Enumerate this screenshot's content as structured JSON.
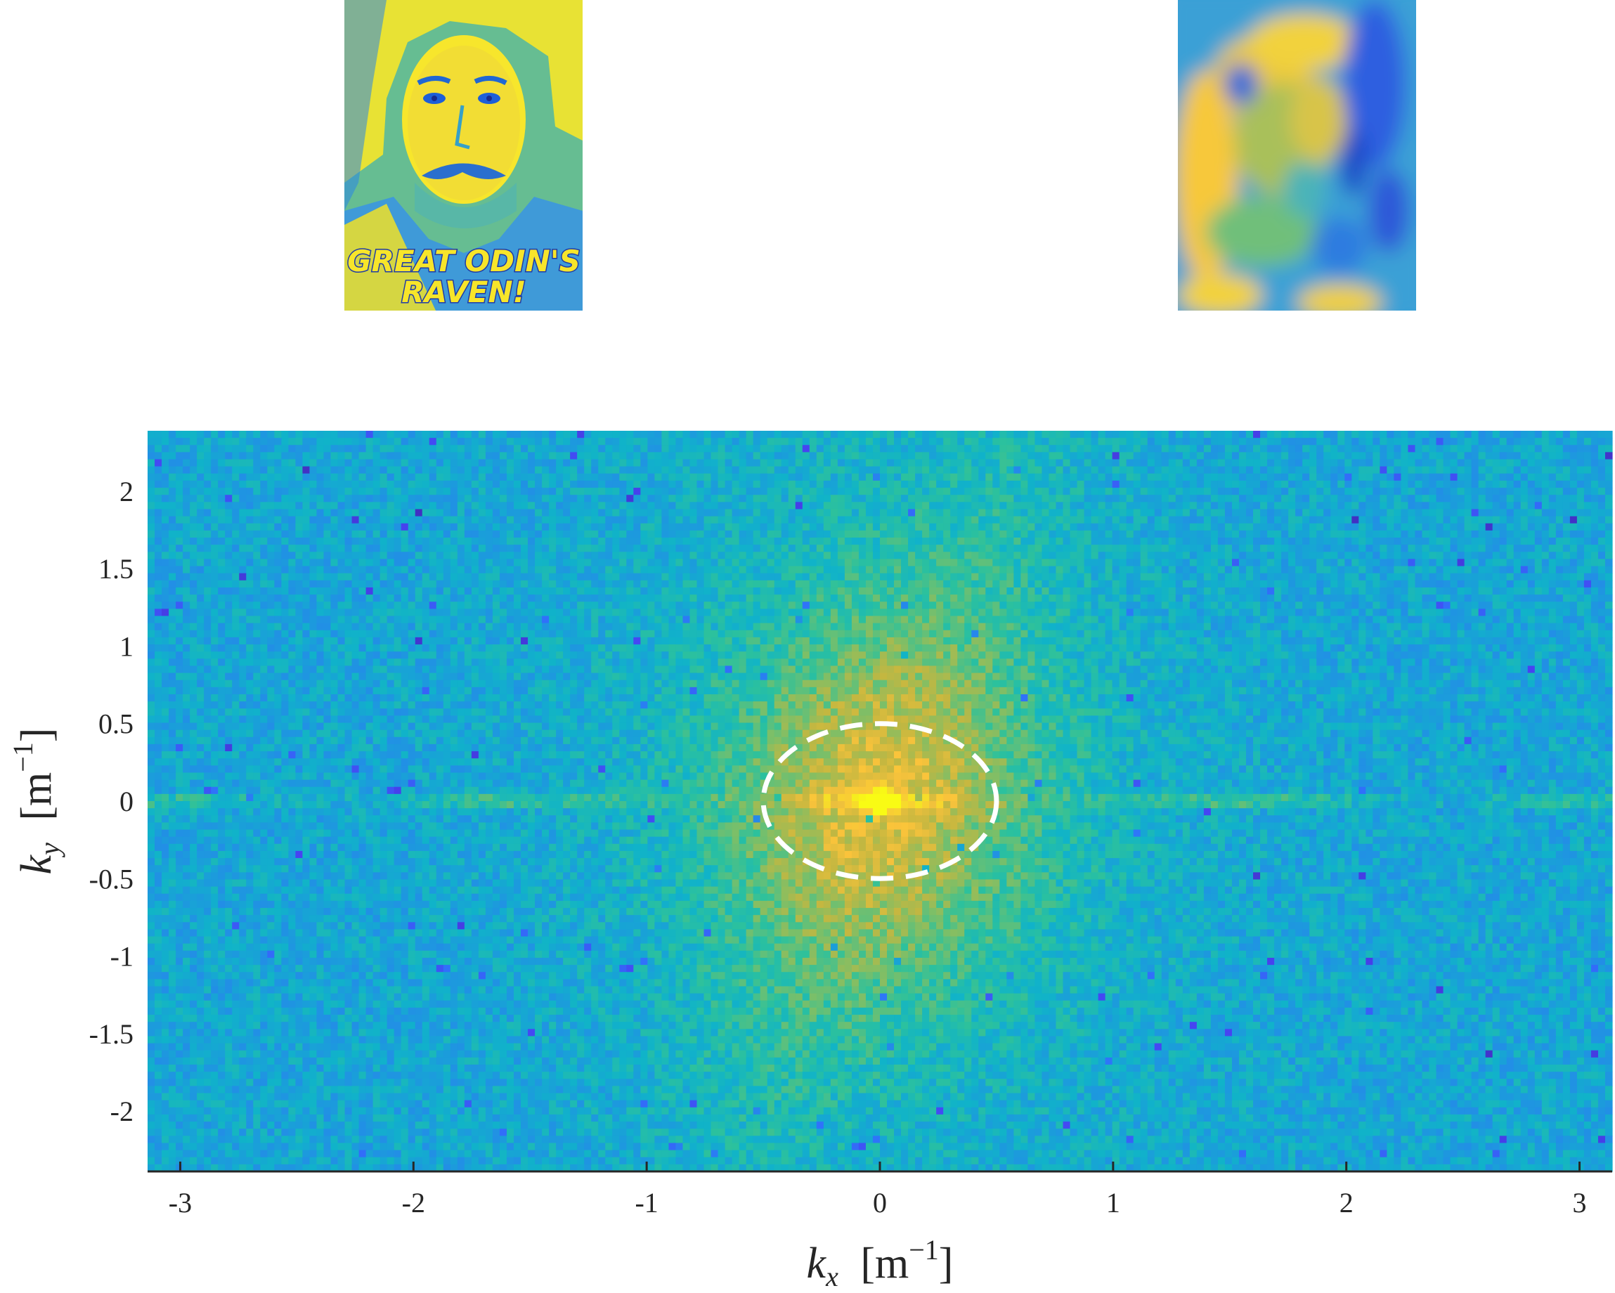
{
  "colors": {
    "colormap": [
      "#3e26a8",
      "#4743f2",
      "#2f73fa",
      "#1f95e1",
      "#10b3c9",
      "#2cc19d",
      "#7abf69",
      "#c4b740",
      "#fac33b",
      "#f5e524",
      "#f9fb14"
    ],
    "ellipse": "#ffffff",
    "axis": "#262626"
  },
  "thumbnails": {
    "original": {
      "caption_line1": "GREAT ODIN'S",
      "caption_line2": "RAVEN!"
    },
    "filtered": {}
  },
  "chart_data": {
    "type": "heatmap",
    "title": "",
    "colormap": "parula",
    "xlim": [
      -3.14,
      3.14
    ],
    "ylim": [
      -2.39,
      2.39
    ],
    "xticks": [
      -3,
      -2,
      -1,
      0,
      1,
      2,
      3
    ],
    "xtick_labels": [
      "-3",
      "-2",
      "-1",
      "0",
      "1",
      "2",
      "3"
    ],
    "yticks": [
      2,
      1.5,
      1,
      0.5,
      0,
      -0.5,
      -1,
      -1.5,
      -2
    ],
    "ytick_labels": [
      "2",
      "1.5",
      "1",
      "0.5",
      "0",
      "-0.5",
      "-1",
      "-1.5",
      "-2"
    ],
    "xlabel": {
      "symbol": "k",
      "subscript": "x",
      "unit": "m",
      "exponent": "−1"
    },
    "ylabel": {
      "symbol": "k",
      "subscript": "y",
      "unit": "m",
      "exponent": "−1"
    },
    "peak": {
      "kx": 0,
      "ky": 0
    },
    "annotation": {
      "shape": "ellipse",
      "style": "dashed",
      "center": [
        0.0,
        0.0
      ],
      "semi_axis_kx": 0.5,
      "semi_axis_ky": 0.5
    }
  }
}
